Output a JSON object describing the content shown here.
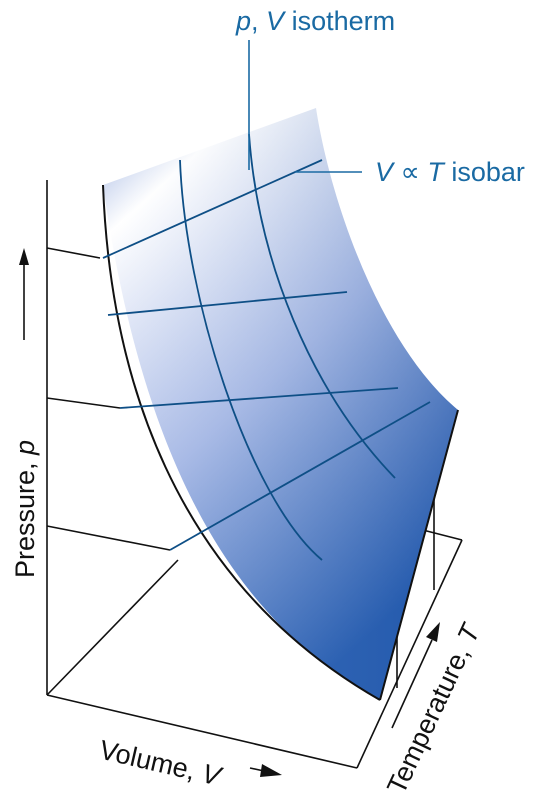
{
  "labels": {
    "isotherm": {
      "prefix": "p",
      "sep": ", ",
      "var": "V",
      "suffix": " isotherm"
    },
    "isobar": {
      "var1": "V",
      "op": " ∝ ",
      "var2": "T",
      "suffix": " isobar"
    },
    "pressure_axis": {
      "text": "Pressure, ",
      "var": "p"
    },
    "volume_axis": {
      "text": "Volume, ",
      "var": "V"
    },
    "temperature_axis": {
      "text": "Temperature, ",
      "var": "T"
    }
  },
  "colors": {
    "surface_light": "#ffffff",
    "surface_mid": "#9fb3e0",
    "surface_dark": "#1f5bb0",
    "grid_line": "#0e4f86",
    "label_blue": "#1a6aa3",
    "axis": "#111111"
  }
}
